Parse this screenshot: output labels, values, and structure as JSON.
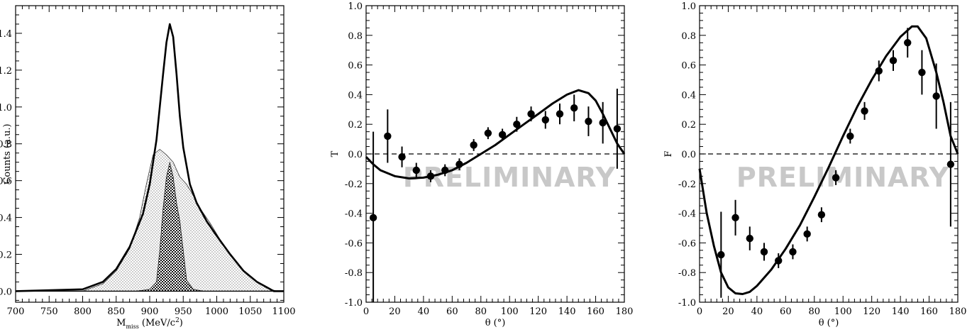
{
  "chart_data": [
    {
      "type": "line",
      "xlabel_main": "M",
      "xlabel_sub": "miss",
      "xlabel_unit": " (MeV/c",
      "xlabel_sup": "2",
      "xlabel_close": ")",
      "ylabel": "Counts (a.u.)",
      "xlim": [
        700,
        1100
      ],
      "ylim": [
        -0.06,
        1.55
      ],
      "xticks": [
        700,
        750,
        800,
        850,
        900,
        950,
        1000,
        1050,
        1100
      ],
      "yticks": [
        0.0,
        0.2,
        0.4,
        0.6,
        0.8,
        1.0,
        1.2,
        1.4
      ],
      "ytick_labels": [
        "0.0",
        "0.2",
        "0.4",
        "0.6",
        "0.8",
        "1.0",
        "1.2",
        "1.4"
      ],
      "series": [
        {
          "style": "thick-line",
          "x": [
            700,
            800,
            830,
            850,
            870,
            890,
            900,
            910,
            915,
            920,
            925,
            930,
            935,
            940,
            945,
            950,
            960,
            970,
            985,
            1000,
            1020,
            1040,
            1060,
            1075,
            1085,
            1100
          ],
          "y": [
            0.0,
            0.01,
            0.05,
            0.12,
            0.24,
            0.42,
            0.58,
            0.82,
            1.0,
            1.18,
            1.35,
            1.45,
            1.38,
            1.18,
            0.95,
            0.78,
            0.58,
            0.48,
            0.38,
            0.3,
            0.2,
            0.11,
            0.05,
            0.02,
            0.0,
            0.0
          ]
        },
        {
          "style": "dotted-fill",
          "x": [
            800,
            830,
            850,
            870,
            885,
            895,
            905,
            915,
            925,
            935,
            945,
            955,
            965,
            975,
            990,
            1005,
            1020,
            1040,
            1060,
            1080,
            1090
          ],
          "y": [
            0.0,
            0.04,
            0.11,
            0.23,
            0.4,
            0.58,
            0.74,
            0.77,
            0.74,
            0.7,
            0.62,
            0.58,
            0.52,
            0.45,
            0.37,
            0.28,
            0.2,
            0.11,
            0.05,
            0.01,
            0.0
          ]
        },
        {
          "style": "checker-fill",
          "x": [
            810,
            880,
            900,
            910,
            915,
            920,
            925,
            930,
            935,
            940,
            945,
            950,
            955,
            965,
            980,
            1020,
            1060
          ],
          "y": [
            0.0,
            0.0,
            0.01,
            0.05,
            0.22,
            0.45,
            0.62,
            0.7,
            0.62,
            0.48,
            0.38,
            0.22,
            0.06,
            0.01,
            0.0,
            0.0,
            0.0
          ]
        }
      ]
    },
    {
      "type": "scatter",
      "xlabel": "θ (°)",
      "ylabel": "T",
      "xlim": [
        0,
        180
      ],
      "ylim": [
        -1.0,
        1.0
      ],
      "xticks": [
        0,
        20,
        40,
        60,
        80,
        100,
        120,
        140,
        160,
        180
      ],
      "yticks": [
        -1.0,
        -0.8,
        -0.6,
        -0.4,
        -0.2,
        0.0,
        0.2,
        0.4,
        0.6,
        0.8,
        1.0
      ],
      "ytick_labels": [
        "-1.0",
        "-0.8",
        "-0.6",
        "-0.4",
        "-0.2",
        "0.0",
        "0.2",
        "0.4",
        "0.6",
        "0.8",
        "1.0"
      ],
      "watermark": "PRELIMINARY",
      "points": {
        "x": [
          5,
          15,
          25,
          35,
          45,
          55,
          65,
          75,
          85,
          95,
          105,
          115,
          125,
          135,
          145,
          155,
          165,
          175
        ],
        "y": [
          -0.43,
          0.12,
          -0.02,
          -0.11,
          -0.15,
          -0.11,
          -0.07,
          0.06,
          0.14,
          0.13,
          0.2,
          0.27,
          0.23,
          0.27,
          0.31,
          0.22,
          0.21,
          0.17
        ],
        "err": [
          0.58,
          0.18,
          0.07,
          0.05,
          0.04,
          0.04,
          0.04,
          0.04,
          0.04,
          0.04,
          0.05,
          0.05,
          0.06,
          0.07,
          0.09,
          0.1,
          0.14,
          0.27
        ]
      },
      "curve": {
        "x": [
          0,
          5,
          10,
          20,
          30,
          40,
          50,
          60,
          70,
          80,
          90,
          100,
          110,
          120,
          130,
          140,
          148,
          155,
          160,
          165,
          170,
          175,
          180
        ],
        "y": [
          -0.02,
          -0.07,
          -0.11,
          -0.15,
          -0.165,
          -0.16,
          -0.14,
          -0.11,
          -0.06,
          0.0,
          0.06,
          0.13,
          0.2,
          0.27,
          0.34,
          0.4,
          0.43,
          0.41,
          0.36,
          0.27,
          0.17,
          0.07,
          0.0
        ]
      },
      "zero_line": 0.0
    },
    {
      "type": "scatter",
      "xlabel": "θ (°)",
      "ylabel": "F",
      "xlim": [
        0,
        180
      ],
      "ylim": [
        -1.0,
        1.0
      ],
      "xticks": [
        0,
        20,
        40,
        60,
        80,
        100,
        120,
        140,
        160,
        180
      ],
      "yticks": [
        -1.0,
        -0.8,
        -0.6,
        -0.4,
        -0.2,
        0.0,
        0.2,
        0.4,
        0.6,
        0.8,
        1.0
      ],
      "ytick_labels": [
        "-1.0",
        "-0.8",
        "-0.6",
        "-0.4",
        "-0.2",
        "0.0",
        "0.2",
        "0.4",
        "0.6",
        "0.8",
        "1.0"
      ],
      "watermark": "PRELIMINARY",
      "points": {
        "x": [
          15,
          25,
          35,
          45,
          55,
          65,
          75,
          85,
          95,
          105,
          115,
          125,
          135,
          145,
          155,
          165,
          175
        ],
        "y": [
          -0.68,
          -0.43,
          -0.57,
          -0.66,
          -0.72,
          -0.66,
          -0.54,
          -0.41,
          -0.16,
          0.12,
          0.29,
          0.56,
          0.63,
          0.75,
          0.55,
          0.39,
          -0.07
        ],
        "err": [
          0.29,
          0.12,
          0.08,
          0.06,
          0.05,
          0.05,
          0.05,
          0.05,
          0.05,
          0.05,
          0.06,
          0.07,
          0.07,
          0.1,
          0.15,
          0.22,
          0.42
        ]
      },
      "curve": {
        "x": [
          0,
          5,
          10,
          15,
          20,
          25,
          30,
          35,
          40,
          50,
          60,
          70,
          80,
          90,
          100,
          110,
          120,
          130,
          140,
          148,
          152,
          158,
          165,
          170,
          175,
          180
        ],
        "y": [
          -0.1,
          -0.4,
          -0.62,
          -0.8,
          -0.9,
          -0.94,
          -0.945,
          -0.93,
          -0.89,
          -0.78,
          -0.64,
          -0.48,
          -0.29,
          -0.09,
          0.12,
          0.32,
          0.5,
          0.66,
          0.79,
          0.86,
          0.86,
          0.78,
          0.55,
          0.35,
          0.12,
          0.0
        ]
      },
      "zero_line": 0.0
    }
  ]
}
